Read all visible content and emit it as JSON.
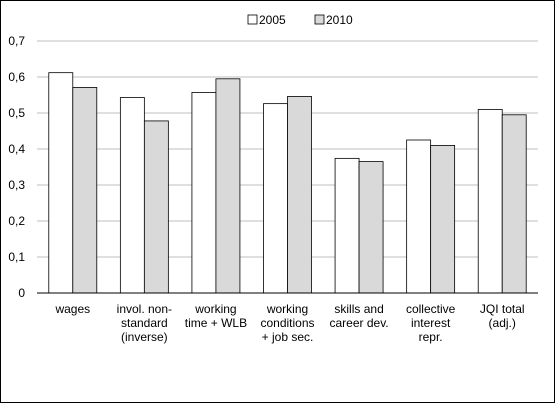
{
  "chart_data": {
    "type": "bar",
    "title": "",
    "xlabel": "",
    "ylabel": "",
    "ylim": [
      0,
      0.7
    ],
    "yticks": [
      "0",
      "0,1",
      "0,2",
      "0,3",
      "0,4",
      "0,5",
      "0,6",
      "0,7"
    ],
    "grid": true,
    "legend_position": "top-center",
    "categories": [
      [
        "wages"
      ],
      [
        "invol. non-",
        "standard",
        "(inverse)"
      ],
      [
        "working",
        "time + WLB"
      ],
      [
        "working",
        "conditions",
        "+ job sec."
      ],
      [
        "skills and",
        "career dev."
      ],
      [
        "collective",
        "interest",
        "repr."
      ],
      [
        "JQI total",
        "(adj.)"
      ]
    ],
    "series": [
      {
        "name": "2005",
        "color": "#ffffff",
        "values": [
          0.612,
          0.543,
          0.557,
          0.526,
          0.374,
          0.425,
          0.51
        ]
      },
      {
        "name": "2010",
        "color": "#d9d9d9",
        "values": [
          0.571,
          0.478,
          0.595,
          0.546,
          0.365,
          0.41,
          0.495
        ]
      }
    ],
    "colors": {
      "bar_stroke": "#000000",
      "grid": "#bfbfbf",
      "axis": "#000000"
    }
  }
}
